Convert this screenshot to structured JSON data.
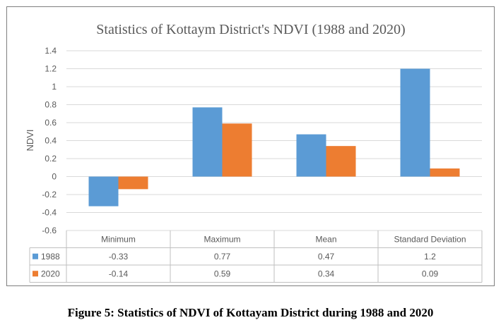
{
  "chart_data": {
    "type": "bar",
    "title": "Statistics of Kottaym District's NDVI (1988 and 2020)",
    "ylabel": "NDVI",
    "xlabel": "",
    "ylim": [
      -0.6,
      1.4
    ],
    "yticks": [
      "1.4",
      "1.2",
      "1",
      "0.8",
      "0.6",
      "0.4",
      "0.2",
      "0",
      "-0.2",
      "-0.4",
      "-0.6"
    ],
    "categories": [
      "Minimum",
      "Maximum",
      "Mean",
      "Standard Deviation"
    ],
    "series": [
      {
        "name": "1988",
        "values": [
          -0.33,
          0.77,
          0.47,
          1.2
        ],
        "labels": [
          "-0.33",
          "0.77",
          "0.47",
          "1.2"
        ],
        "color": "#5b9bd5"
      },
      {
        "name": "2020",
        "values": [
          -0.14,
          0.59,
          0.34,
          0.09
        ],
        "labels": [
          "-0.14",
          "0.59",
          "0.34",
          "0.09"
        ],
        "color": "#ed7d31"
      }
    ],
    "grid": true,
    "data_table": true
  },
  "caption": "Figure 5: Statistics of NDVI of Kottayam District during 1988 and 2020"
}
